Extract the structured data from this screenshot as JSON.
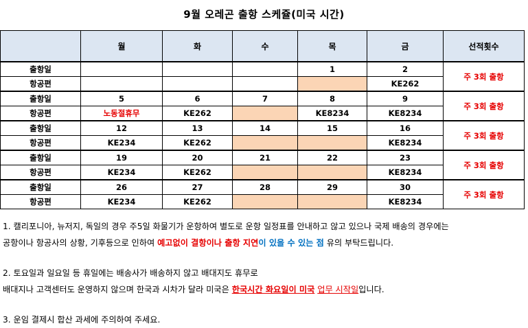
{
  "title": "9월 오레곤 출항 스케쥴(미국 시간)",
  "table": {
    "headers": [
      "",
      "월",
      "화",
      "수",
      "목",
      "금",
      "선적횟수"
    ],
    "weeks": [
      {
        "row1_label": "출항일",
        "row2_label": "항공편",
        "dates": [
          "",
          "",
          "",
          "1",
          "2"
        ],
        "flights": [
          "",
          "",
          "",
          "",
          "KE262"
        ],
        "freq": "주 3회 출항"
      },
      {
        "row1_label": "출항일",
        "row2_label": "항공편",
        "dates": [
          "5",
          "6",
          "7",
          "8",
          "9"
        ],
        "flights": [
          "노동절휴무",
          "KE262",
          "",
          "KE8234",
          "KE8234"
        ],
        "freq": "주 3회 출항"
      },
      {
        "row1_label": "출항일",
        "row2_label": "항공편",
        "dates": [
          "12",
          "13",
          "14",
          "15",
          "16"
        ],
        "flights": [
          "KE234",
          "KE262",
          "",
          "",
          "KE8234"
        ],
        "freq": "주 3회 출항"
      },
      {
        "row1_label": "출항일",
        "row2_label": "항공편",
        "dates": [
          "19",
          "20",
          "21",
          "22",
          "23"
        ],
        "flights": [
          "KE234",
          "KE262",
          "",
          "",
          "KE8234"
        ],
        "freq": "주 3회 출항"
      },
      {
        "row1_label": "출항일",
        "row2_label": "항공편",
        "dates": [
          "26",
          "27",
          "28",
          "29",
          "30"
        ],
        "flights": [
          "KE234",
          "KE262",
          "",
          "",
          "KE8234"
        ],
        "freq": "주 3회 출항"
      }
    ]
  },
  "notes": {
    "n1_a": "1. 캘리포니아, 뉴저지, 독일의 경우 주5일 화물기가 운항하여 별도로 운항 일정표를 안내하고 않고 있으나 국제 배송의 경우에는",
    "n1_b": "공항이나 항공사의 상황, 기후등으로 인하여 ",
    "n1_red": "예고없이 결항이나 출항 지연",
    "n1_blue": "이 있을 수 있는 점",
    "n1_c": " 유의 부탁드립니다.",
    "n2_a": "2. 토요일과 일요일 등 휴일에는 배송사가 배송하지 않고 배대지도 휴무로",
    "n2_b": "배대지나 고객센터도 운영하지 않으며 한국과 시차가 달라 미국은 ",
    "n2_red": "한국시간 화요일이 미국",
    "n2_c": " ",
    "n2_red2": "업무 시작일",
    "n2_d": "입니다.",
    "n3": "3. 운임 결제시 합산 과세에 주의하여 주세요."
  },
  "colors": {
    "header_bg": "#dce6f2",
    "highlight_cell": "#fbd5b5",
    "accent_red": "#e60000",
    "accent_blue": "#0070c0"
  }
}
